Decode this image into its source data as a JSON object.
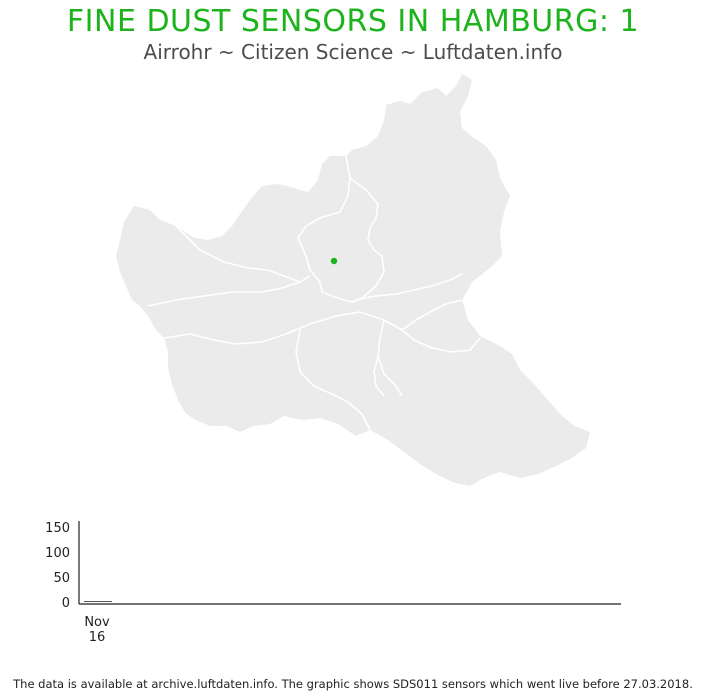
{
  "header": {
    "title": "FINE DUST SENSORS IN HAMBURG: 1",
    "subtitle": "Airrohr ~ Citizen Science ~ Luftdaten.info"
  },
  "map": {
    "region": "Hamburg",
    "fill_color": "#ebebeb",
    "border_color": "#ffffff",
    "sensor_color": "#1db31d",
    "sensor_count": 1
  },
  "chart_data": {
    "type": "line",
    "x": [
      "Nov 16"
    ],
    "yticks": [
      0,
      50,
      100,
      150
    ],
    "ylim": [
      0,
      160
    ],
    "series": [
      {
        "values": [
          0
        ]
      }
    ],
    "xtick_labels": [
      {
        "line1": "Nov",
        "line2": "16"
      }
    ]
  },
  "footer": {
    "note": "The data is available at archive.luftdaten.info. The graphic shows SDS011 sensors which went live before 27.03.2018."
  }
}
